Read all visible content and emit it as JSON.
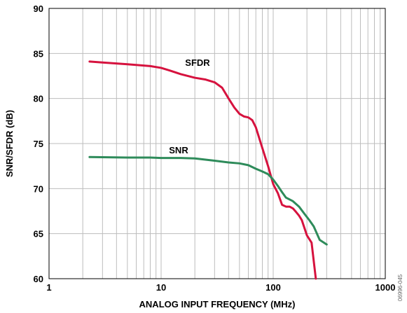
{
  "chart_data": {
    "type": "line",
    "xscale": "log",
    "xlim": [
      1,
      1000
    ],
    "ylim": [
      60,
      90
    ],
    "xlabel": "ANALOG INPUT FREQUENCY (MHz)",
    "ylabel": "SNR/SFDR (dB)",
    "xticks": [
      "1",
      "10",
      "100",
      "1000"
    ],
    "yticks": [
      "60",
      "65",
      "70",
      "75",
      "80",
      "85",
      "90"
    ],
    "grid": true,
    "figure_id": "06996-045",
    "colors": {
      "SFDR": "#d6123e",
      "SNR": "#2e8b5a"
    },
    "series": [
      {
        "name": "SFDR",
        "x": [
          2.3,
          3,
          5,
          8,
          10,
          12,
          15,
          20,
          25,
          30,
          35,
          40,
          45,
          50,
          55,
          60,
          65,
          70,
          80,
          90,
          100,
          110,
          120,
          130,
          140,
          150,
          160,
          170,
          180,
          200,
          220,
          240
        ],
        "y": [
          84.1,
          84.0,
          83.8,
          83.6,
          83.4,
          83.1,
          82.7,
          82.3,
          82.1,
          81.8,
          81.2,
          80.0,
          79.0,
          78.3,
          78.0,
          77.9,
          77.6,
          76.8,
          74.5,
          72.5,
          70.5,
          69.5,
          68.2,
          68.0,
          68.0,
          67.8,
          67.4,
          67.0,
          66.5,
          64.8,
          64.0,
          60.0
        ]
      },
      {
        "name": "SNR",
        "x": [
          2.3,
          5,
          8,
          10,
          15,
          20,
          30,
          40,
          50,
          60,
          70,
          80,
          90,
          100,
          110,
          120,
          130,
          150,
          170,
          190,
          210,
          230,
          260,
          300
        ],
        "y": [
          73.5,
          73.45,
          73.45,
          73.4,
          73.4,
          73.35,
          73.1,
          72.9,
          72.8,
          72.6,
          72.2,
          71.9,
          71.6,
          71.0,
          70.3,
          69.6,
          69.0,
          68.6,
          68.0,
          67.2,
          66.5,
          65.8,
          64.3,
          63.8
        ]
      }
    ]
  }
}
